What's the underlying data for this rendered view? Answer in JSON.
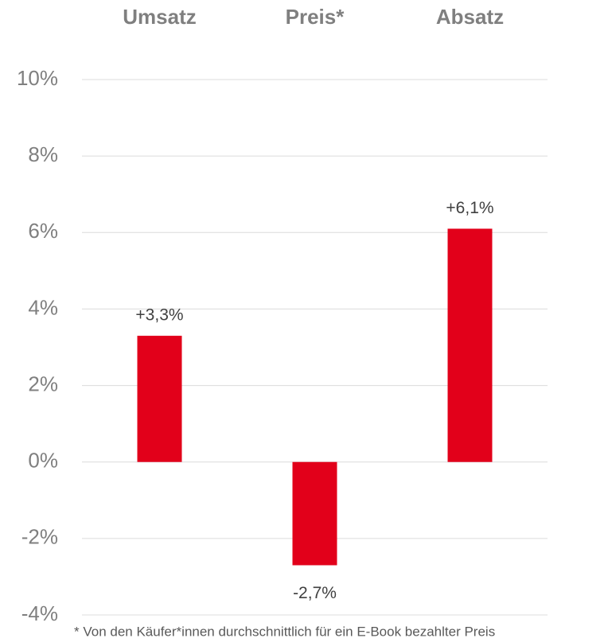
{
  "chart_data": {
    "type": "bar",
    "categories": [
      "Umsatz",
      "Preis*",
      "Absatz"
    ],
    "values": [
      3.3,
      -2.7,
      6.1
    ],
    "value_labels": [
      "+3,3%",
      "-2,7%",
      "+6,1%"
    ],
    "color": "#e2001a",
    "ylim": [
      -4,
      10
    ],
    "yticks": [
      {
        "value": -4,
        "label": "-4%"
      },
      {
        "value": -2,
        "label": "-2%"
      },
      {
        "value": 0,
        "label": "0%"
      },
      {
        "value": 2,
        "label": "2%"
      },
      {
        "value": 4,
        "label": "4%"
      },
      {
        "value": 6,
        "label": "6%"
      },
      {
        "value": 8,
        "label": "8%"
      },
      {
        "value": 10,
        "label": "10%"
      }
    ],
    "grid": true,
    "footnote": "* Von den Käufer*innen durchschnittlich für ein E-Book bezahlter Preis"
  }
}
